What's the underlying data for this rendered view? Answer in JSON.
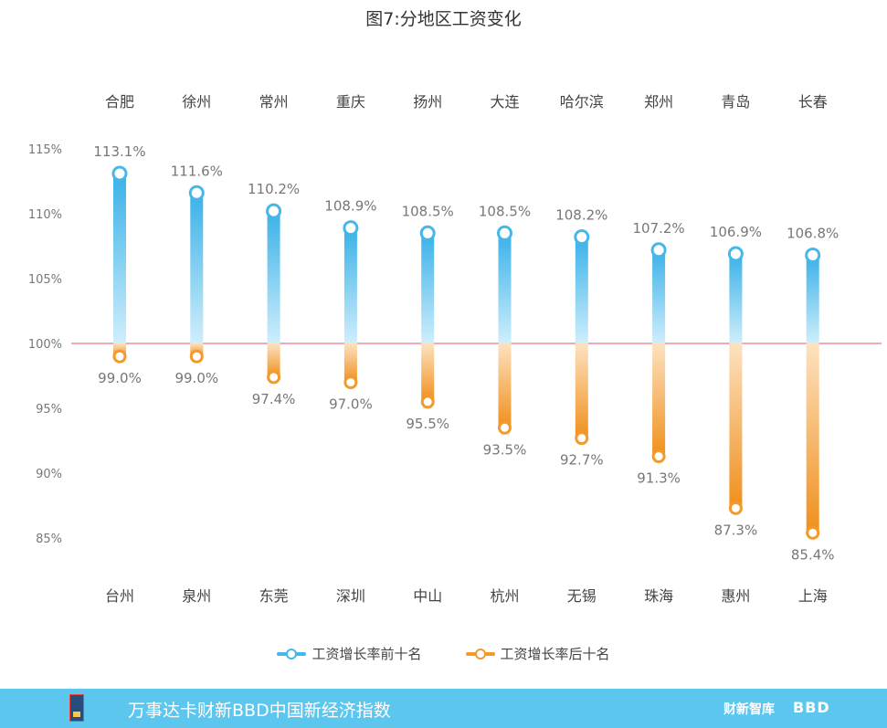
{
  "title": "图7:分地区工资变化",
  "chart_data": {
    "type": "dumbbell",
    "title": "图7:分地区工资变化",
    "ylim": [
      83,
      117
    ],
    "yticks": [
      85,
      90,
      95,
      100,
      105,
      110,
      115
    ],
    "ytick_labels": [
      "85%",
      "90%",
      "95%",
      "100%",
      "105%",
      "110%",
      "115%"
    ],
    "reference_line": 100,
    "top_categories": [
      "合肥",
      "徐州",
      "常州",
      "重庆",
      "扬州",
      "大连",
      "哈尔滨",
      "郑州",
      "青岛",
      "长春"
    ],
    "bottom_categories": [
      "台州",
      "泉州",
      "东莞",
      "深圳",
      "中山",
      "杭州",
      "无锡",
      "珠海",
      "惠州",
      "上海"
    ],
    "series": [
      {
        "name": "工资增长率前十名",
        "color": "#45b8ea",
        "values": [
          113.1,
          111.6,
          110.2,
          108.9,
          108.5,
          108.5,
          108.2,
          107.2,
          106.9,
          106.8
        ],
        "labels": [
          "113.1%",
          "111.6%",
          "110.2%",
          "108.9%",
          "108.5%",
          "108.5%",
          "108.2%",
          "107.2%",
          "106.9%",
          "106.8%"
        ]
      },
      {
        "name": "工资增长率后十名",
        "color": "#f39a2b",
        "values": [
          99.0,
          99.0,
          97.4,
          97.0,
          95.5,
          93.5,
          92.7,
          91.3,
          87.3,
          85.4
        ],
        "labels": [
          "99.0%",
          "99.0%",
          "97.4%",
          "97.0%",
          "95.5%",
          "93.5%",
          "92.7%",
          "91.3%",
          "87.3%",
          "85.4%"
        ]
      }
    ],
    "legend_position": "bottom"
  },
  "legend": {
    "top_label": "工资增长率前十名",
    "bottom_label": "工资增长率后十名"
  },
  "footer": {
    "text": "万事达卡财新BBD中国新经济指数",
    "brand1": "财新智库",
    "brand2": "BBD"
  },
  "colors": {
    "blue": "#45b8ea",
    "orange": "#f39a2b",
    "footer_bg": "#5cc6ef",
    "reference_line": "#e0506a"
  }
}
